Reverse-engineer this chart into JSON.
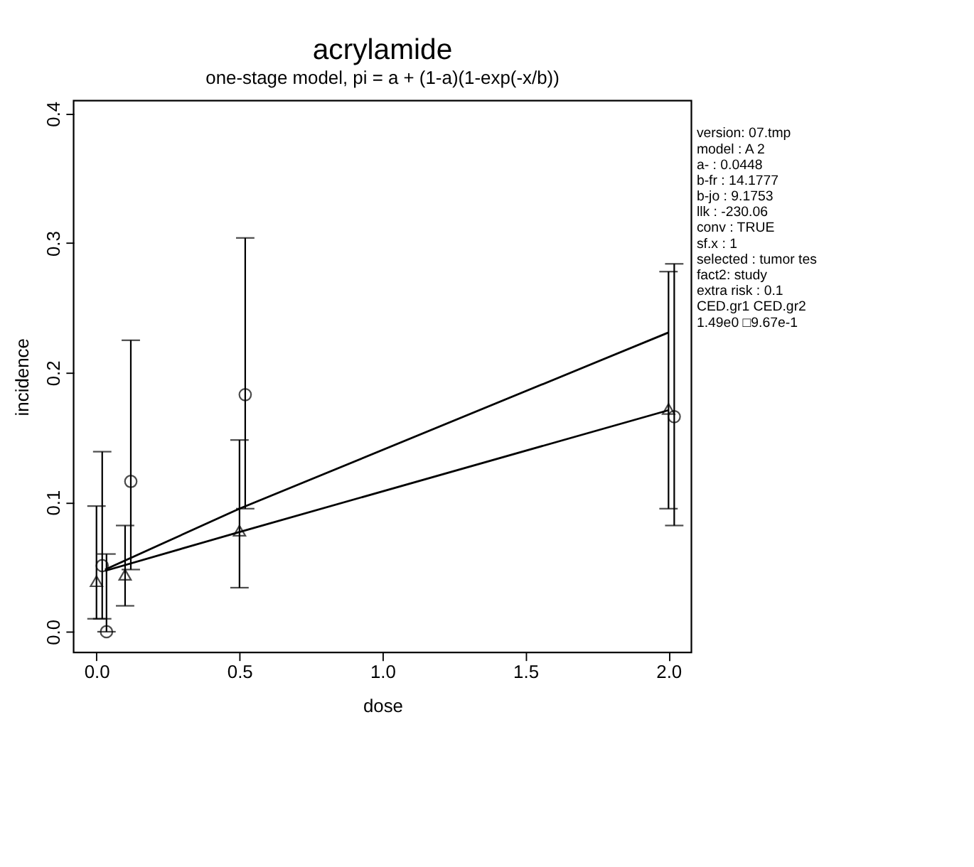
{
  "chart_data": {
    "type": "scatter",
    "title": "acrylamide",
    "subtitle": "one-stage model, pi = a + (1-a)(1-exp(-x/b))",
    "xlabel": "dose",
    "ylabel": "incidence",
    "series": [
      {
        "marker": "circle",
        "color": "#000000",
        "x": [
          0.02,
          0.035,
          0.12,
          0.52,
          2.02
        ],
        "values": [
          0.051,
          0.0,
          0.116,
          0.183,
          0.166
        ],
        "errors": [
          [
            0.01,
            0.139
          ],
          [
            0.0,
            0.06
          ],
          [
            0.048,
            0.225
          ],
          [
            0.095,
            0.304
          ],
          [
            0.082,
            0.284
          ]
        ]
      },
      {
        "marker": "triangle",
        "color": "#000000",
        "x": [
          0.0,
          0.1,
          0.5,
          2.0
        ],
        "values": [
          0.039,
          0.044,
          0.078,
          0.172
        ],
        "errors": [
          [
            0.01,
            0.097
          ],
          [
            0.02,
            0.082
          ],
          [
            0.034,
            0.148
          ],
          [
            0.095,
            0.278
          ]
        ]
      },
      {
        "type": "line",
        "line_style": "solid",
        "color": "#000000",
        "x": [
          0.03,
          0.5,
          2.0
        ],
        "values": [
          0.048,
          0.095,
          0.231
        ]
      },
      {
        "type": "line",
        "line_style": "solid",
        "color": "#000000",
        "x": [
          0.03,
          0.5,
          2.0
        ],
        "values": [
          0.047,
          0.077,
          0.171
        ]
      }
    ],
    "xlim": [
      -0.08,
      2.08
    ],
    "xticks": [
      {
        "value": 0,
        "label": "0.0"
      },
      0.5,
      {
        "value": 1,
        "label": "1.0"
      },
      1.5,
      {
        "value": 2,
        "label": "2.0"
      }
    ],
    "ylim": [
      -0.016,
      0.41
    ],
    "yticks": [
      {
        "value": 0,
        "label": "0.0"
      },
      0.1,
      0.2,
      0.3,
      0.4
    ],
    "grid": false,
    "annotations": [
      "version: 07.tmp",
      "model :   A 2",
      "a- :   0.0448",
      "b-fr :   14.1777",
      "b-jo :   9.1753",
      "llk :   -230.06",
      "conv :   TRUE",
      "sf.x :   1",
      "selected :    tumor tes",
      "fact2:  study",
      " extra risk :  0.1",
      " CED.gr1 CED.gr2",
      " 1.49e0 □9.67e-1"
    ]
  }
}
